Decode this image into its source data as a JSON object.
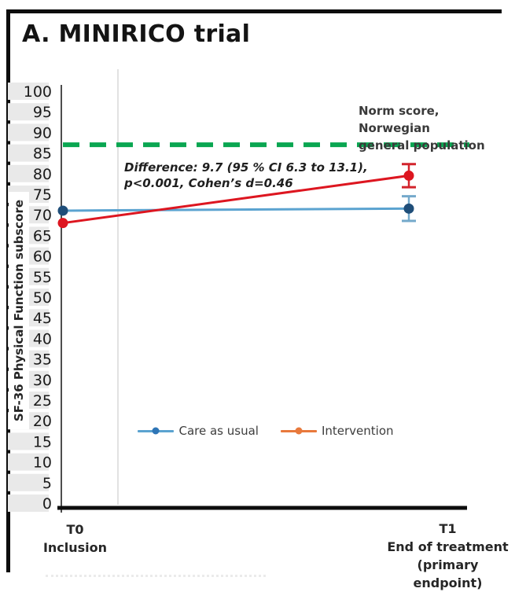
{
  "window": {
    "title": "A. MINIRICO trial"
  },
  "chart_data": {
    "type": "line",
    "title": "A. MINIRICO trial",
    "xlabel": "",
    "ylabel": "SF-36 Physical Function subscore",
    "ylim": [
      0,
      100
    ],
    "ytick_step": 5,
    "categories": [
      "T0 Inclusion",
      "T1 End of treatment (primary endpoint)"
    ],
    "series": [
      {
        "name": "Care as usual",
        "values": [
          71,
          71.5
        ],
        "error": [
          null,
          3
        ],
        "line_color": "#5ba3d0",
        "marker_color": "#1f4e79",
        "error_color": "#74a9cb",
        "legend_color": "#5ba3d0",
        "legend_marker_color": "#2e75b6"
      },
      {
        "name": "Intervention",
        "values": [
          68,
          79.5
        ],
        "error": [
          null,
          2.8
        ],
        "line_color": "#dd1620",
        "marker_color": "#dd1620",
        "error_color": "#d2242c",
        "legend_color": "#e8793c",
        "legend_marker_color": "#e8793c"
      }
    ],
    "reference_line": {
      "value": 87,
      "label": "Norm score, Norwegian general population",
      "color": "#0aa651",
      "style": "dashed"
    },
    "annotation": "Difference: 9.7 (95 % CI 6.3 to 13.1), p<0.001, Cohen’s d=0.46",
    "grid": "single light vertical gridline",
    "legend_position": "bottom-center",
    "axis_colors": {
      "y_axis": "#4d4d4d",
      "x_axis": "#0d0d0d",
      "gridline": "#d9d9d9",
      "tick_label": "#1a1a1a",
      "tick_band": "#e9e9e9"
    }
  },
  "labels": {
    "norm_line1": "Norm score, Norwegian",
    "norm_line2": "general population",
    "annotation_line1": "Difference: 9.7 (95 % CI 6.3 to 13.1),",
    "annotation_line2": "p<0.001, Cohen’s d=0.46",
    "x_t0_line1": "T0",
    "x_t0_line2": "Inclusion",
    "x_t1_line1": "T1",
    "x_t1_line2": "End of treatment",
    "x_t1_line3": "(primary endpoint)"
  }
}
